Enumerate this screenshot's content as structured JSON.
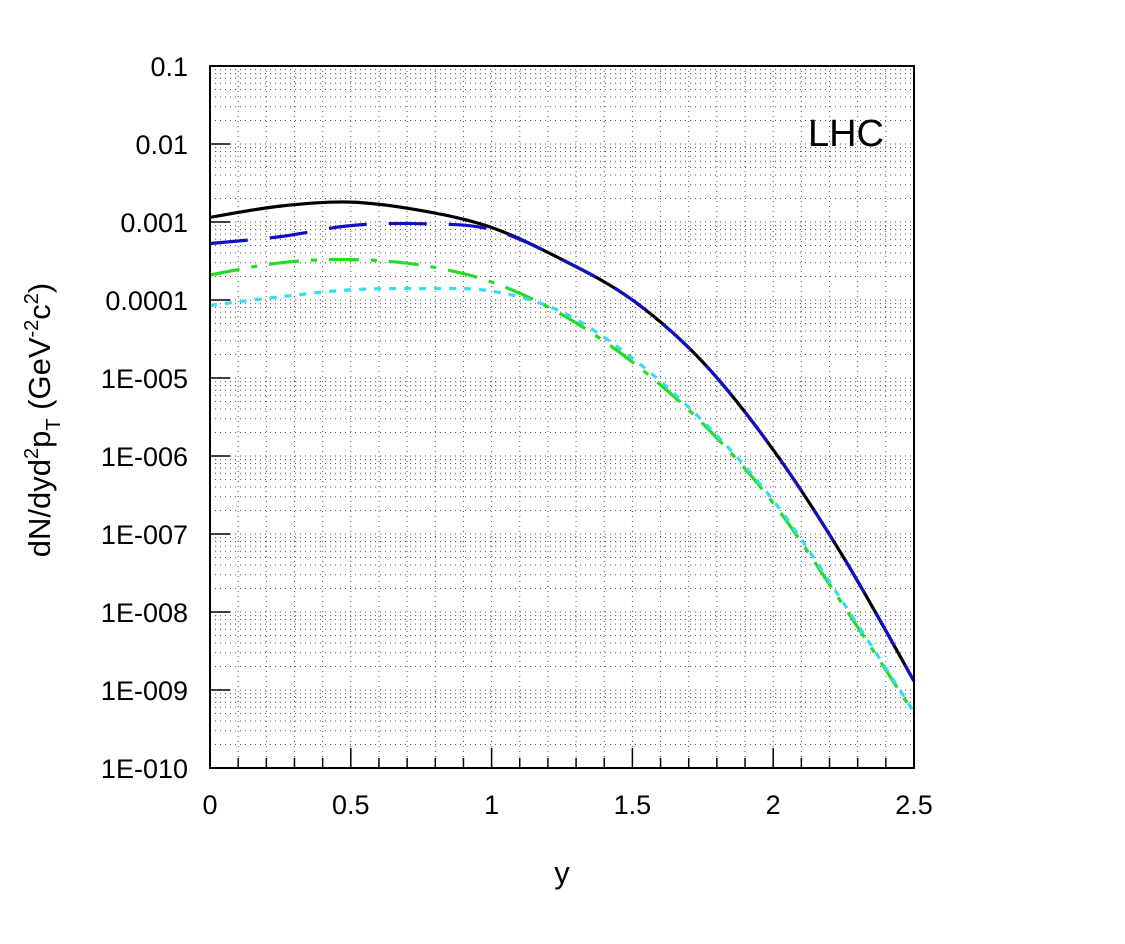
{
  "chart_data": {
    "type": "line",
    "title": "",
    "xlabel": "y",
    "ylabel": "dN/dyd²p_T (GeV⁻²c²)",
    "ylabel_parts": [
      "dN/dyd",
      "2",
      "p",
      "T",
      " (GeV",
      "-2",
      "c",
      "2",
      ")"
    ],
    "annotation": "LHC",
    "xlim": [
      0,
      2.5
    ],
    "ylim": [
      1e-10,
      0.1
    ],
    "yscale": "log",
    "grid": true,
    "x_ticks": [
      0,
      0.5,
      1,
      1.5,
      2,
      2.5
    ],
    "x_tick_labels": [
      "0",
      "0.5",
      "1",
      "1.5",
      "2",
      "2.5"
    ],
    "y_ticks": [
      0.1,
      0.01,
      0.001,
      0.0001,
      1e-05,
      1e-06,
      1e-07,
      1e-08,
      1e-09,
      1e-10
    ],
    "y_tick_labels": [
      "0.1",
      "0.01",
      "0.001",
      "0.0001",
      "1E-005",
      "1E-006",
      "1E-007",
      "1E-008",
      "1E-009",
      "1E-010"
    ],
    "series": [
      {
        "color": "#000000",
        "style": "solid",
        "x": [
          0,
          0.25,
          0.5,
          0.75,
          1.0,
          1.25,
          1.5,
          1.75,
          2.0,
          2.25,
          2.5
        ],
        "y": [
          0.00115,
          0.0016,
          0.0018,
          0.0014,
          0.00085,
          0.00033,
          0.0001,
          1.6e-05,
          1.2e-06,
          5e-08,
          1.3e-09
        ]
      },
      {
        "color": "#1010c0",
        "style": "long-dash",
        "x": [
          0,
          0.25,
          0.5,
          0.75,
          1.0,
          1.25,
          1.5,
          1.75,
          2.0,
          2.25,
          2.5
        ],
        "y": [
          0.00053,
          0.00065,
          0.0009,
          0.00095,
          0.0008,
          0.00033,
          0.0001,
          1.6e-05,
          1.2e-06,
          5e-08,
          1.3e-09
        ]
      },
      {
        "color": "#22dd22",
        "style": "dash-dot",
        "x": [
          0,
          0.25,
          0.5,
          0.75,
          1.0,
          1.25,
          1.5,
          1.75,
          2.0,
          2.25,
          2.5
        ],
        "y": [
          0.00021,
          0.0003,
          0.00033,
          0.00028,
          0.00017,
          6.5e-05,
          1.6e-05,
          2.6e-06,
          2.5e-07,
          1.2e-08,
          5e-10
        ]
      },
      {
        "color": "#33ddee",
        "style": "dotted",
        "x": [
          0,
          0.25,
          0.5,
          0.75,
          1.0,
          1.25,
          1.5,
          1.75,
          2.0,
          2.25,
          2.5
        ],
        "y": [
          8.5e-05,
          0.00011,
          0.000135,
          0.00014,
          0.00013,
          7e-05,
          1.8e-05,
          2.8e-06,
          2.7e-07,
          1.3e-08,
          5.2e-10
        ]
      }
    ]
  }
}
